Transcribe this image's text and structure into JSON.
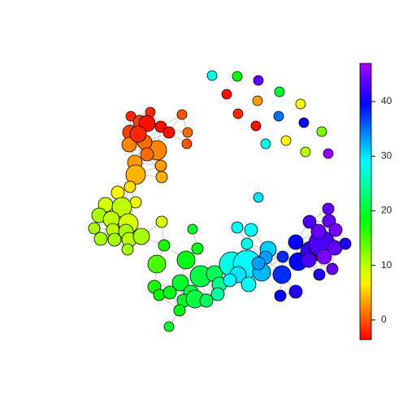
{
  "chart_data": {
    "type": "network",
    "values": [
      28,
      18,
      44,
      -3,
      20,
      3,
      7,
      -2,
      35,
      -3,
      40,
      13,
      28,
      7,
      10,
      46,
      -2,
      -2,
      0,
      -1,
      -3,
      -1,
      -3,
      -3,
      1,
      0,
      2,
      1,
      2,
      -2,
      3,
      3,
      4,
      4,
      1,
      6,
      7,
      8,
      9,
      10,
      11,
      10,
      9,
      11,
      10,
      11,
      11,
      11,
      10,
      11,
      11,
      9,
      20,
      17,
      19,
      15,
      19,
      17,
      18,
      19,
      20,
      21,
      21,
      22,
      24,
      20,
      21,
      22,
      25,
      19,
      20,
      29,
      30,
      29,
      28,
      28,
      29,
      30,
      29,
      31,
      33,
      32,
      33,
      29,
      40,
      38,
      38,
      40,
      40,
      41,
      42,
      43,
      43,
      44,
      44,
      44,
      45,
      44,
      45,
      44,
      41,
      41,
      43
    ],
    "ylim": [
      -3.6,
      47
    ],
    "yticks": [
      0,
      10,
      20,
      30,
      40
    ]
  }
}
